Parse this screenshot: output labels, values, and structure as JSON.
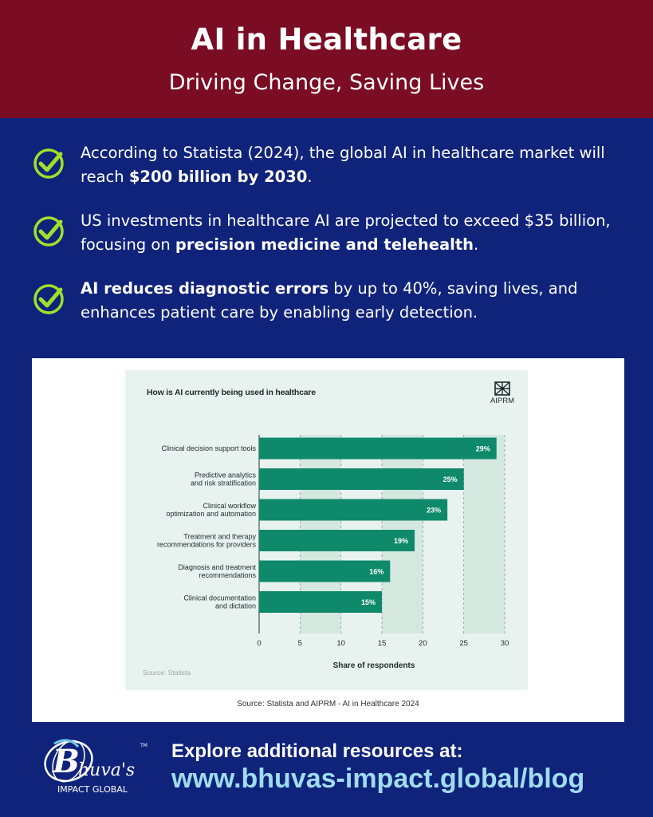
{
  "header": {
    "title": "AI in Healthcare",
    "subtitle": "Driving Change, Saving Lives"
  },
  "bullets": [
    {
      "pre": "According to Statista (2024), the global AI in healthcare market will reach ",
      "bold": "$200 billion by 2030",
      "post": "."
    },
    {
      "pre": "US investments in healthcare AI are projected to exceed $35 billion, focusing on ",
      "bold": "precision medicine and telehealth",
      "post": "."
    },
    {
      "pre": "",
      "bold": "AI reduces diagnostic errors",
      "post": " by up to 40%, saving lives, and enhances patient care by enabling early detection."
    }
  ],
  "colors": {
    "header_bg": "#7a0c24",
    "page_bg": "#10237a",
    "check": "#9fe02a",
    "bar": "#0e8a6b",
    "chart_bg": "#e8f3ef",
    "url": "#9fdcf2"
  },
  "chart_data": {
    "type": "bar",
    "orientation": "horizontal",
    "title": "How is AI currently being used in healthcare",
    "brand": "AIPRM",
    "categories": [
      [
        "Clinical decision support tools"
      ],
      [
        "Predictive analytics",
        "and risk stratification"
      ],
      [
        "Clinical workflow",
        "optimization and automation"
      ],
      [
        "Treatment and therapy",
        "recommendations for providers"
      ],
      [
        "Diagnosis and treatment",
        "recommendations"
      ],
      [
        "Clinical documentation",
        "and dictation"
      ]
    ],
    "values": [
      29,
      25,
      23,
      19,
      16,
      15
    ],
    "value_labels": [
      "29%",
      "25%",
      "23%",
      "19%",
      "16%",
      "15%"
    ],
    "xlabel": "Share of respondents",
    "xlim": [
      0,
      30
    ],
    "xticks": [
      "0",
      "5",
      "10",
      "15",
      "20",
      "25",
      "30"
    ],
    "grid": "vertical dashed",
    "source": "Source: Statista"
  },
  "caption": "Source: Statista and AIPRM - AI in Healthcare 2024",
  "footer": {
    "logo_text": "huva's",
    "logo_sub": "IMPACT GLOBAL",
    "logo_tm": "TM",
    "label": "Explore additional resources at:",
    "url": "www.bhuvas-impact.global/blog"
  }
}
